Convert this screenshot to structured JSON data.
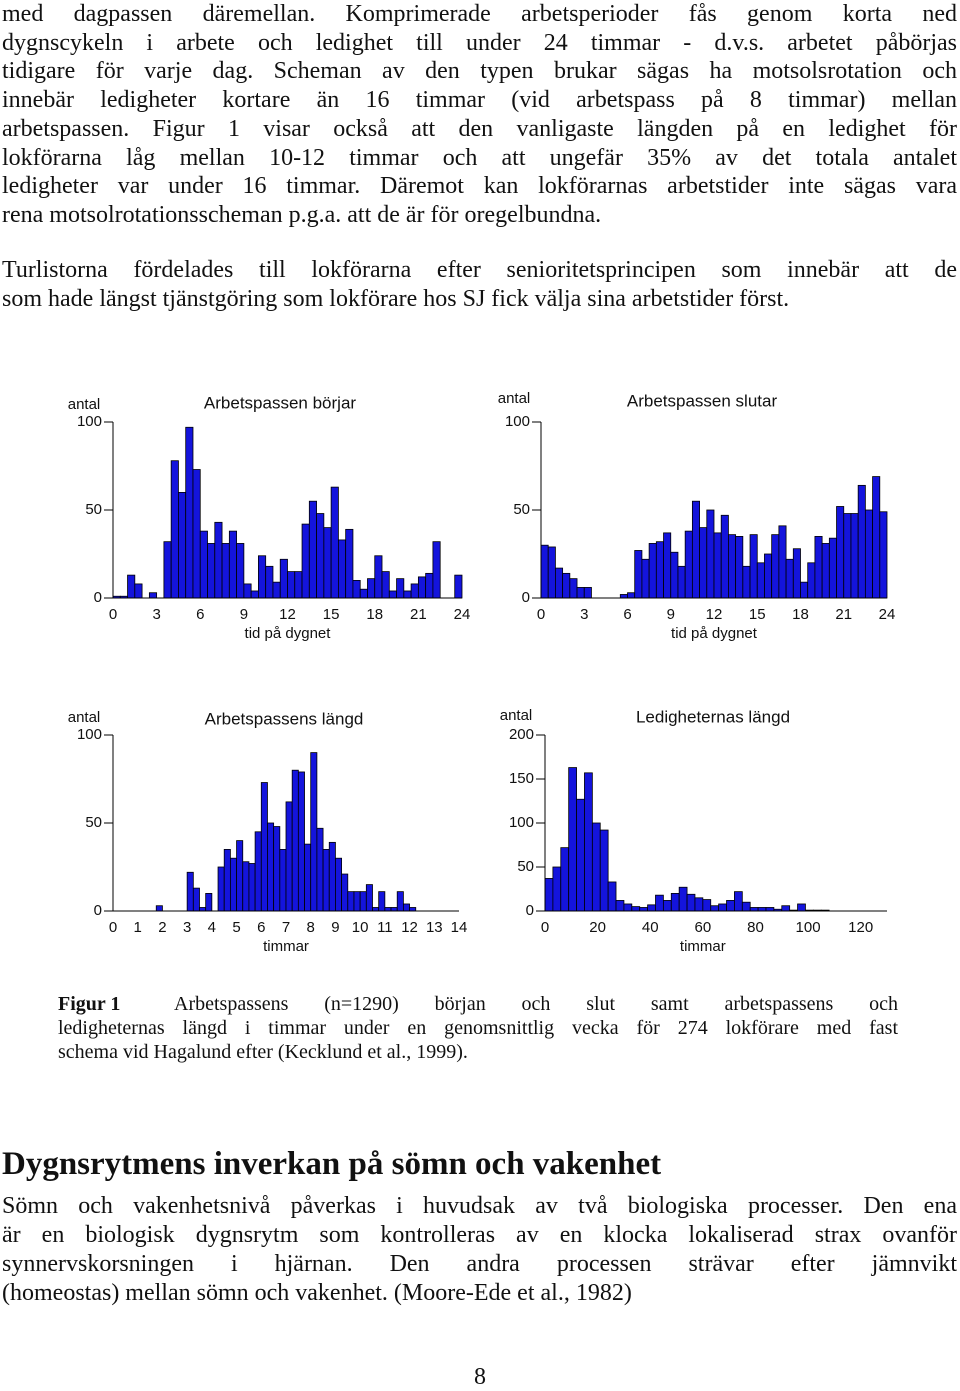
{
  "paragraphs": [
    {
      "lines": [
        "med dagpassen däremellan. Komprimerade arbetsperioder fås genom korta ned",
        "dygnscykeln i arbete och ledighet till under 24 timmar - d.v.s. arbetet påbörjas",
        "tidigare för varje dag. Scheman av den typen brukar sägas ha motsolsrotation och",
        "innebär ledigheter kortare än 16 timmar (vid arbetspass på  8 timmar) mellan",
        "arbetspassen. Figur 1 visar också att den vanligaste längden på en ledighet för",
        "lokförarna låg mellan 10-12 timmar och att ungefär 35% av det totala antalet",
        "ledigheter var under 16 timmar. Däremot kan lokförarnas arbetstider inte sägas vara",
        "rena motsolrotationsscheman p.g.a. att de är för oregelbundna."
      ]
    },
    {
      "lines": [
        "Turlistorna fördelades till lokförarna efter senioritetsprincipen som innebär att de",
        "som hade längst tjänstgöring som lokförare hos SJ fick välja sina arbetstider först."
      ]
    }
  ],
  "chart_data": [
    {
      "type": "histogram",
      "title": "Arbetspassen börjar",
      "y_label": "antal",
      "x_label": "tid på dygnet",
      "color": "#1414dc",
      "bins": [
        0,
        0.5,
        1,
        1.5,
        2,
        2.5,
        3,
        3.5,
        4,
        4.5,
        5,
        5.5,
        6,
        6.5,
        7,
        7.5,
        8,
        8.5,
        9,
        9.5,
        10,
        10.5,
        11,
        11.5,
        12,
        12.5,
        13,
        13.5,
        14,
        14.5,
        15,
        15.5,
        16,
        16.5,
        17,
        17.5,
        18,
        18.5,
        19,
        19.5,
        20,
        20.5,
        21,
        21.5,
        22,
        22.5,
        23,
        23.5,
        24
      ],
      "values": [
        1,
        1,
        13,
        8,
        0,
        3,
        0,
        32,
        78,
        60,
        97,
        73,
        38,
        31,
        43,
        31,
        38,
        31,
        8,
        4,
        24,
        18,
        9,
        22,
        15,
        15,
        42,
        55,
        48,
        40,
        63,
        33,
        39,
        10,
        5,
        11,
        24,
        15,
        4,
        11,
        4,
        8,
        12,
        14,
        32,
        0,
        0,
        13
      ],
      "xlim": [
        0,
        24
      ],
      "xticks": [
        0,
        3,
        6,
        9,
        12,
        15,
        18,
        21,
        24
      ],
      "ylim": [
        0,
        100
      ],
      "yticks": [
        0,
        50,
        100
      ]
    },
    {
      "type": "histogram",
      "title": "Arbetspassen slutar",
      "y_label": "antal",
      "x_label": "tid på dygnet",
      "color": "#1414dc",
      "bins": [
        0,
        0.5,
        1,
        1.5,
        2,
        2.5,
        3,
        3.5,
        4,
        4.5,
        5,
        5.5,
        6,
        6.5,
        7,
        7.5,
        8,
        8.5,
        9,
        9.5,
        10,
        10.5,
        11,
        11.5,
        12,
        12.5,
        13,
        13.5,
        14,
        14.5,
        15,
        15.5,
        16,
        16.5,
        17,
        17.5,
        18,
        18.5,
        19,
        19.5,
        20,
        20.5,
        21,
        21.5,
        22,
        22.5,
        23,
        23.5,
        24
      ],
      "values": [
        30,
        29,
        17,
        14,
        11,
        6,
        6,
        0,
        0,
        0,
        0,
        2,
        3,
        27,
        22,
        31,
        32,
        37,
        26,
        18,
        38,
        55,
        40,
        50,
        37,
        47,
        36,
        35,
        18,
        36,
        20,
        25,
        36,
        41,
        22,
        28,
        9,
        20,
        35,
        31,
        34,
        52,
        48,
        48,
        64,
        50,
        69,
        49
      ],
      "xlim": [
        0,
        24
      ],
      "xticks": [
        0,
        3,
        6,
        9,
        12,
        15,
        18,
        21,
        24
      ],
      "ylim": [
        0,
        100
      ],
      "yticks": [
        0,
        50,
        100
      ]
    },
    {
      "type": "histogram",
      "title": "Arbetspassens längd",
      "y_label": "antal",
      "x_label": "timmar",
      "color": "#1414dc",
      "bins": [
        0,
        0.25,
        0.5,
        0.75,
        1,
        1.25,
        1.5,
        1.75,
        2,
        2.25,
        2.5,
        2.75,
        3,
        3.25,
        3.5,
        3.75,
        4,
        4.25,
        4.5,
        4.75,
        5,
        5.25,
        5.5,
        5.75,
        6,
        6.25,
        6.5,
        6.75,
        7,
        7.25,
        7.5,
        7.75,
        8,
        8.25,
        8.5,
        8.75,
        9,
        9.25,
        9.5,
        9.75,
        10,
        10.25,
        10.5,
        10.75,
        11,
        11.25,
        11.5,
        11.75,
        12,
        12.25,
        12.5,
        12.75,
        13,
        13.25,
        13.5,
        13.75,
        14
      ],
      "values": [
        0,
        0,
        0,
        0,
        0,
        0,
        0,
        3,
        0,
        0,
        0,
        0,
        22,
        13,
        2,
        10,
        0,
        25,
        35,
        30,
        40,
        28,
        27,
        45,
        73,
        50,
        48,
        35,
        62,
        80,
        79,
        38,
        90,
        47,
        35,
        39,
        30,
        21,
        11,
        11,
        11,
        15,
        2,
        11,
        2,
        2,
        11,
        4,
        2,
        0,
        0,
        0,
        0,
        0,
        0,
        0
      ],
      "xlim": [
        0,
        14
      ],
      "xticks": [
        0,
        1,
        2,
        3,
        4,
        5,
        6,
        7,
        8,
        9,
        10,
        11,
        12,
        13,
        14
      ],
      "ylim": [
        0,
        100
      ],
      "yticks": [
        0,
        50,
        100
      ]
    },
    {
      "type": "histogram",
      "title": "Ledigheternas längd",
      "y_label": "antal",
      "x_label": "timmar",
      "color": "#1414dc",
      "bins": [
        0,
        3,
        6,
        9,
        12,
        15,
        18,
        21,
        24,
        27,
        30,
        33,
        36,
        39,
        42,
        45,
        48,
        51,
        54,
        57,
        60,
        63,
        66,
        69,
        72,
        75,
        78,
        81,
        84,
        87,
        90,
        93,
        96,
        99,
        102,
        105,
        108,
        111
      ],
      "values": [
        37,
        50,
        72,
        163,
        127,
        157,
        100,
        92,
        33,
        12,
        8,
        5,
        4,
        7,
        18,
        12,
        20,
        27,
        19,
        15,
        13,
        6,
        8,
        12,
        22,
        10,
        4,
        4,
        4,
        2,
        6,
        1,
        8,
        1,
        1,
        1,
        0
      ],
      "xlim": [
        0,
        130
      ],
      "xticks": [
        0,
        20,
        40,
        60,
        80,
        100,
        120
      ],
      "ylim": [
        0,
        200
      ],
      "yticks": [
        0,
        50,
        100,
        150,
        200
      ]
    }
  ],
  "figure_caption": {
    "label": "Figur 1",
    "lines": [
      "Arbetspassens (n=1290) början och slut samt arbetspassens och",
      "ledigheternas längd i timmar under en genomsnittlig vecka för 274 lokförare med fast",
      "schema vid Hagalund efter (Kecklund et al., 1999)."
    ]
  },
  "section": {
    "heading": "Dygnsrytmens inverkan på sömn och vakenhet",
    "lines": [
      "Sömn och vakenhetsnivå påverkas i huvudsak av två biologiska processer. Den ena",
      "är en biologisk dygnsrytm som kontrolleras av en klocka lokaliserad strax ovanför",
      "synnervskorsningen i hjärnan. Den andra processen strävar efter jämnvikt",
      "(homeostas) mellan sömn och vakenhet. (Moore-Ede et al., 1982)"
    ]
  },
  "page_number": "8"
}
